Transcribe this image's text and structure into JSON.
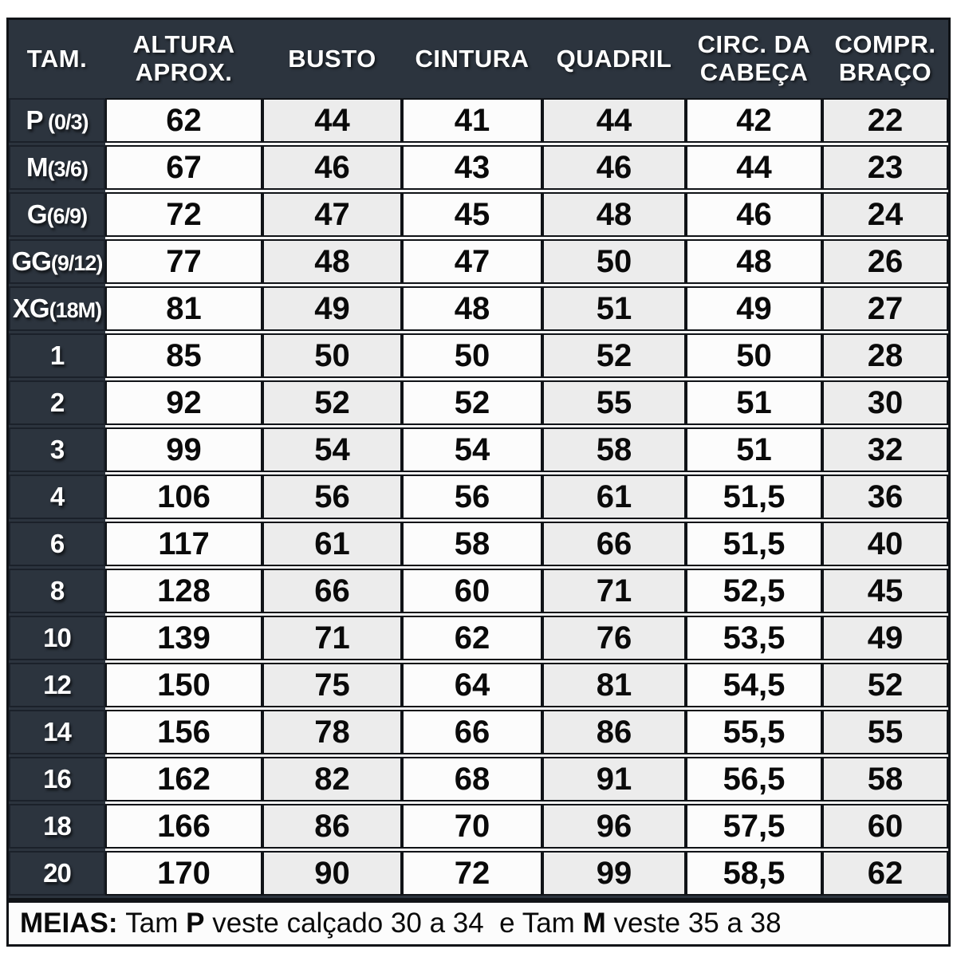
{
  "colors": {
    "table_dark": "#2c343e",
    "border": "#101317",
    "cell_white": "#fcfcfc",
    "cell_gray": "#ececec",
    "gap_light": "#f6f6f6",
    "header_text": "#ffffff",
    "value_text": "#0a0a0a"
  },
  "chart_data": {
    "type": "table",
    "columns": [
      "TAM.",
      "ALTURA\nAPROX.",
      "BUSTO",
      "CINTURA",
      "QUADRIL",
      "CIRC. DA\nCABEÇA",
      "COMPR.\nBRAÇO"
    ],
    "rows": [
      {
        "size": "P",
        "detail": " (0/3)",
        "values": [
          "62",
          "44",
          "41",
          "44",
          "42",
          "22"
        ]
      },
      {
        "size": "M",
        "detail": "(3/6)",
        "values": [
          "67",
          "46",
          "43",
          "46",
          "44",
          "23"
        ]
      },
      {
        "size": "G",
        "detail": "(6/9)",
        "values": [
          "72",
          "47",
          "45",
          "48",
          "46",
          "24"
        ]
      },
      {
        "size": "GG",
        "detail": "(9/12)",
        "values": [
          "77",
          "48",
          "47",
          "50",
          "48",
          "26"
        ]
      },
      {
        "size": "XG",
        "detail": "(18M)",
        "values": [
          "81",
          "49",
          "48",
          "51",
          "49",
          "27"
        ]
      },
      {
        "size": "1",
        "detail": "",
        "values": [
          "85",
          "50",
          "50",
          "52",
          "50",
          "28"
        ]
      },
      {
        "size": "2",
        "detail": "",
        "values": [
          "92",
          "52",
          "52",
          "55",
          "51",
          "30"
        ]
      },
      {
        "size": "3",
        "detail": "",
        "values": [
          "99",
          "54",
          "54",
          "58",
          "51",
          "32"
        ]
      },
      {
        "size": "4",
        "detail": "",
        "values": [
          "106",
          "56",
          "56",
          "61",
          "51,5",
          "36"
        ]
      },
      {
        "size": "6",
        "detail": "",
        "values": [
          "117",
          "61",
          "58",
          "66",
          "51,5",
          "40"
        ]
      },
      {
        "size": "8",
        "detail": "",
        "values": [
          "128",
          "66",
          "60",
          "71",
          "52,5",
          "45"
        ]
      },
      {
        "size": "10",
        "detail": "",
        "values": [
          "139",
          "71",
          "62",
          "76",
          "53,5",
          "49"
        ]
      },
      {
        "size": "12",
        "detail": "",
        "values": [
          "150",
          "75",
          "64",
          "81",
          "54,5",
          "52"
        ]
      },
      {
        "size": "14",
        "detail": "",
        "values": [
          "156",
          "78",
          "66",
          "86",
          "55,5",
          "55"
        ]
      },
      {
        "size": "16",
        "detail": "",
        "values": [
          "162",
          "82",
          "68",
          "91",
          "56,5",
          "58"
        ]
      },
      {
        "size": "18",
        "detail": "",
        "values": [
          "166",
          "86",
          "70",
          "96",
          "57,5",
          "60"
        ]
      },
      {
        "size": "20",
        "detail": "",
        "values": [
          "170",
          "90",
          "72",
          "99",
          "58,5",
          "62"
        ]
      }
    ]
  },
  "footer": {
    "bold_label": "MEIAS:",
    "seg1": " Tam ",
    "bold_p": "P",
    "seg2": " veste calçado 30 a 34  e Tam ",
    "bold_m": "M",
    "seg3": " veste 35 a 38"
  }
}
